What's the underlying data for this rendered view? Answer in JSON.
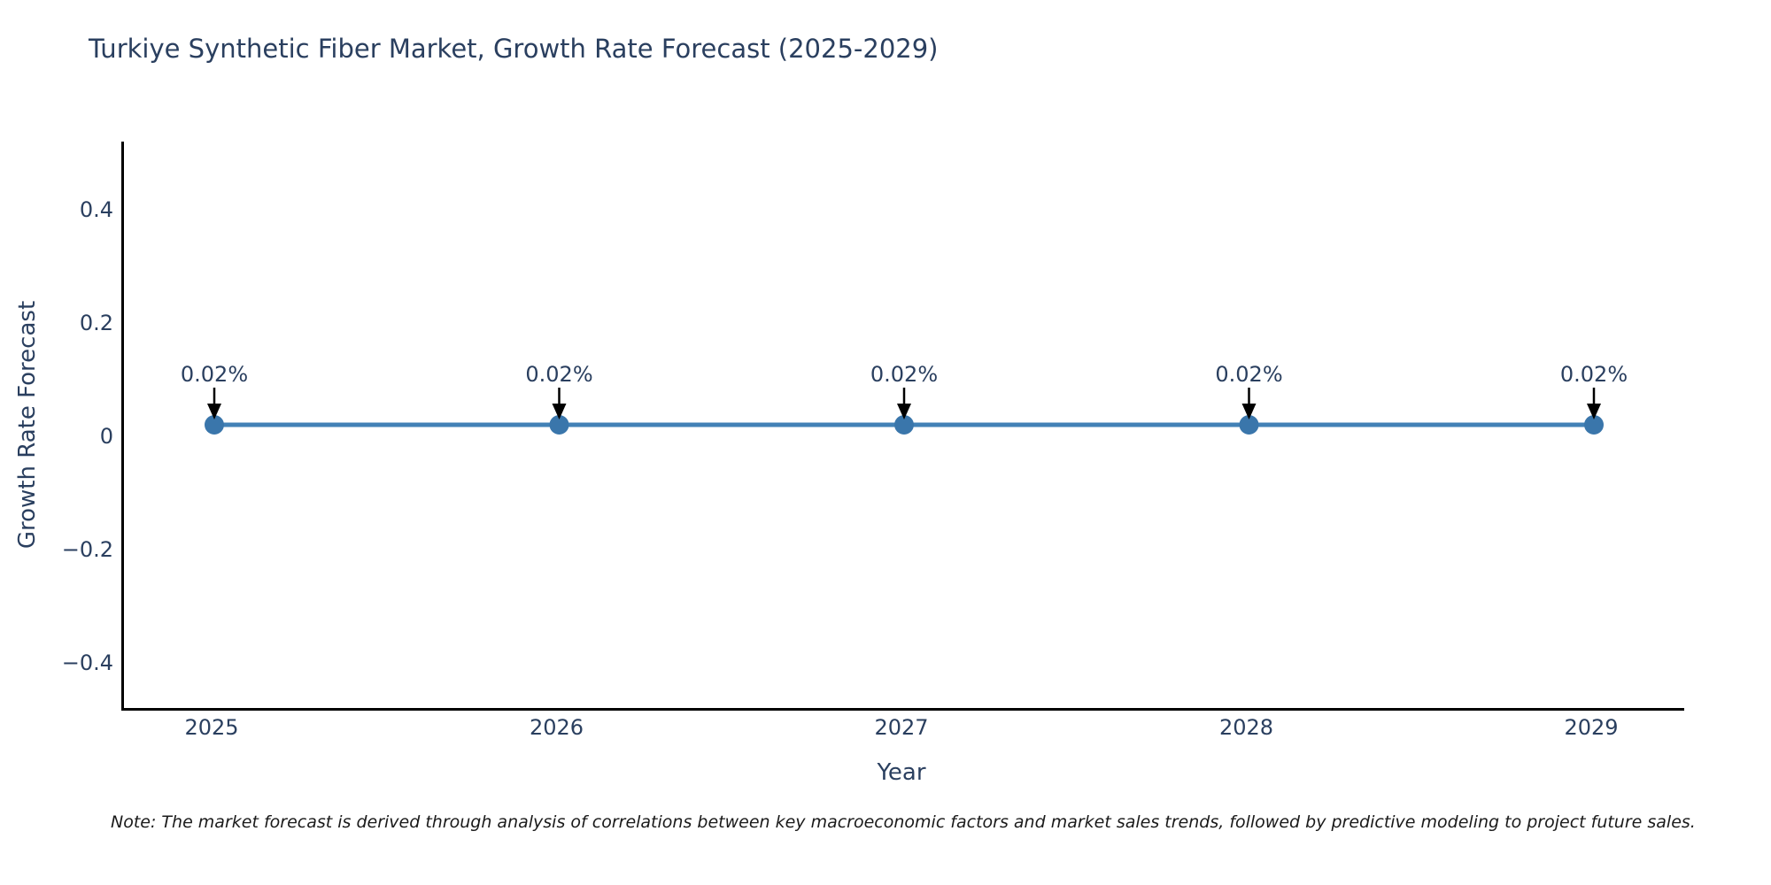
{
  "chart_data": {
    "type": "line",
    "title": "Turkiye Synthetic Fiber Market, Growth Rate Forecast (2025-2029)",
    "xlabel": "Year",
    "ylabel": "Growth Rate Forecast",
    "categories": [
      "2025",
      "2026",
      "2027",
      "2028",
      "2029"
    ],
    "series": [
      {
        "name": "Growth Rate Forecast",
        "values": [
          0.02,
          0.02,
          0.02,
          0.02,
          0.02
        ],
        "point_labels": [
          "0.02%",
          "0.02%",
          "0.02%",
          "0.02%",
          "0.02%"
        ]
      }
    ],
    "y_ticks": [
      {
        "label": "−0.4",
        "value": -0.4
      },
      {
        "label": "−0.2",
        "value": -0.2
      },
      {
        "label": "0",
        "value": 0
      },
      {
        "label": "0.2",
        "value": 0.2
      },
      {
        "label": "0.4",
        "value": 0.4
      }
    ],
    "ylim": [
      -0.48,
      0.52
    ],
    "grid": false,
    "legend_position": "none",
    "colors": {
      "line": "#4281b6",
      "marker": "#3a76ab",
      "annotation_arrow": "#000000",
      "annotation_text": "#2a3f5f",
      "axis_line": "#000000",
      "text": "#2a3f5f"
    }
  },
  "note": {
    "text": "Note: The market forecast is derived through analysis of correlations between key macroeconomic factors and market sales trends, followed by predictive modeling to project future sales."
  }
}
